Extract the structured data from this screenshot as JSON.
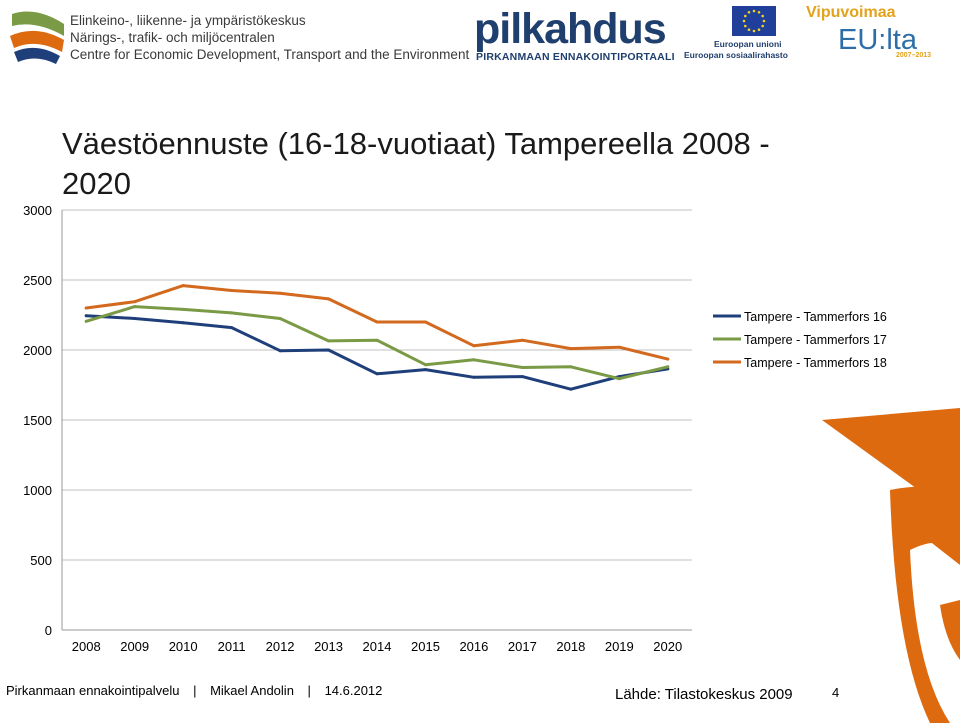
{
  "header": {
    "ely_lines": [
      "Elinkeino-, liikenne- ja ympäristökeskus",
      "Närings-, trafik- och miljöcentralen",
      "Centre for Economic Development, Transport and the Environment"
    ],
    "pilkahdus_title": "pilkahdus",
    "pilkahdus_subtitle": "PIRKANMAAN ENNAKOINTIPORTAALI",
    "eu_line1": "Euroopan unioni",
    "eu_line2": "Euroopan sosiaalirahasto",
    "vipuvoimaa_title": "Vipuvoimaa",
    "vipuvoimaa_eu": "EU:lta",
    "vipuvoimaa_years": "2007–2013"
  },
  "title": "Väestöennuste (16-18-vuotiaat) Tampereella 2008 - 2020",
  "colors": {
    "series16": "#1f3f7a",
    "series17": "#7a9a45",
    "series18": "#d2691e",
    "grid": "#c0c0c0",
    "deco": "#de6a10"
  },
  "chart_data": {
    "type": "line",
    "title": "Väestöennuste (16-18-vuotiaat) Tampereella 2008 - 2020",
    "x": [
      "2008",
      "2009",
      "2010",
      "2011",
      "2012",
      "2013",
      "2014",
      "2015",
      "2016",
      "2017",
      "2018",
      "2019",
      "2020"
    ],
    "ylim": [
      0,
      3000
    ],
    "yticks": [
      0,
      500,
      1000,
      1500,
      2000,
      2500,
      3000
    ],
    "grid": true,
    "legend_position": "right",
    "series": [
      {
        "name": "Tampere - Tammerfors 16",
        "values": [
          2245,
          2225,
          2195,
          2160,
          1995,
          2000,
          1830,
          1860,
          1805,
          1810,
          1720,
          1810,
          1865
        ]
      },
      {
        "name": "Tampere - Tammerfors 17",
        "values": [
          2205,
          2310,
          2290,
          2265,
          2225,
          2065,
          2070,
          1895,
          1930,
          1875,
          1880,
          1795,
          1880
        ]
      },
      {
        "name": "Tampere - Tammerfors 18",
        "values": [
          2300,
          2345,
          2460,
          2425,
          2405,
          2365,
          2200,
          2200,
          2030,
          2070,
          2010,
          2020,
          1935
        ]
      }
    ]
  },
  "footer": {
    "org": "Pirkanmaan ennakointipalvelu",
    "sep": "|",
    "author": "Mikael Andolin",
    "date": "14.6.2012",
    "source": "Lähde: Tilastokeskus 2009",
    "page": "4"
  }
}
